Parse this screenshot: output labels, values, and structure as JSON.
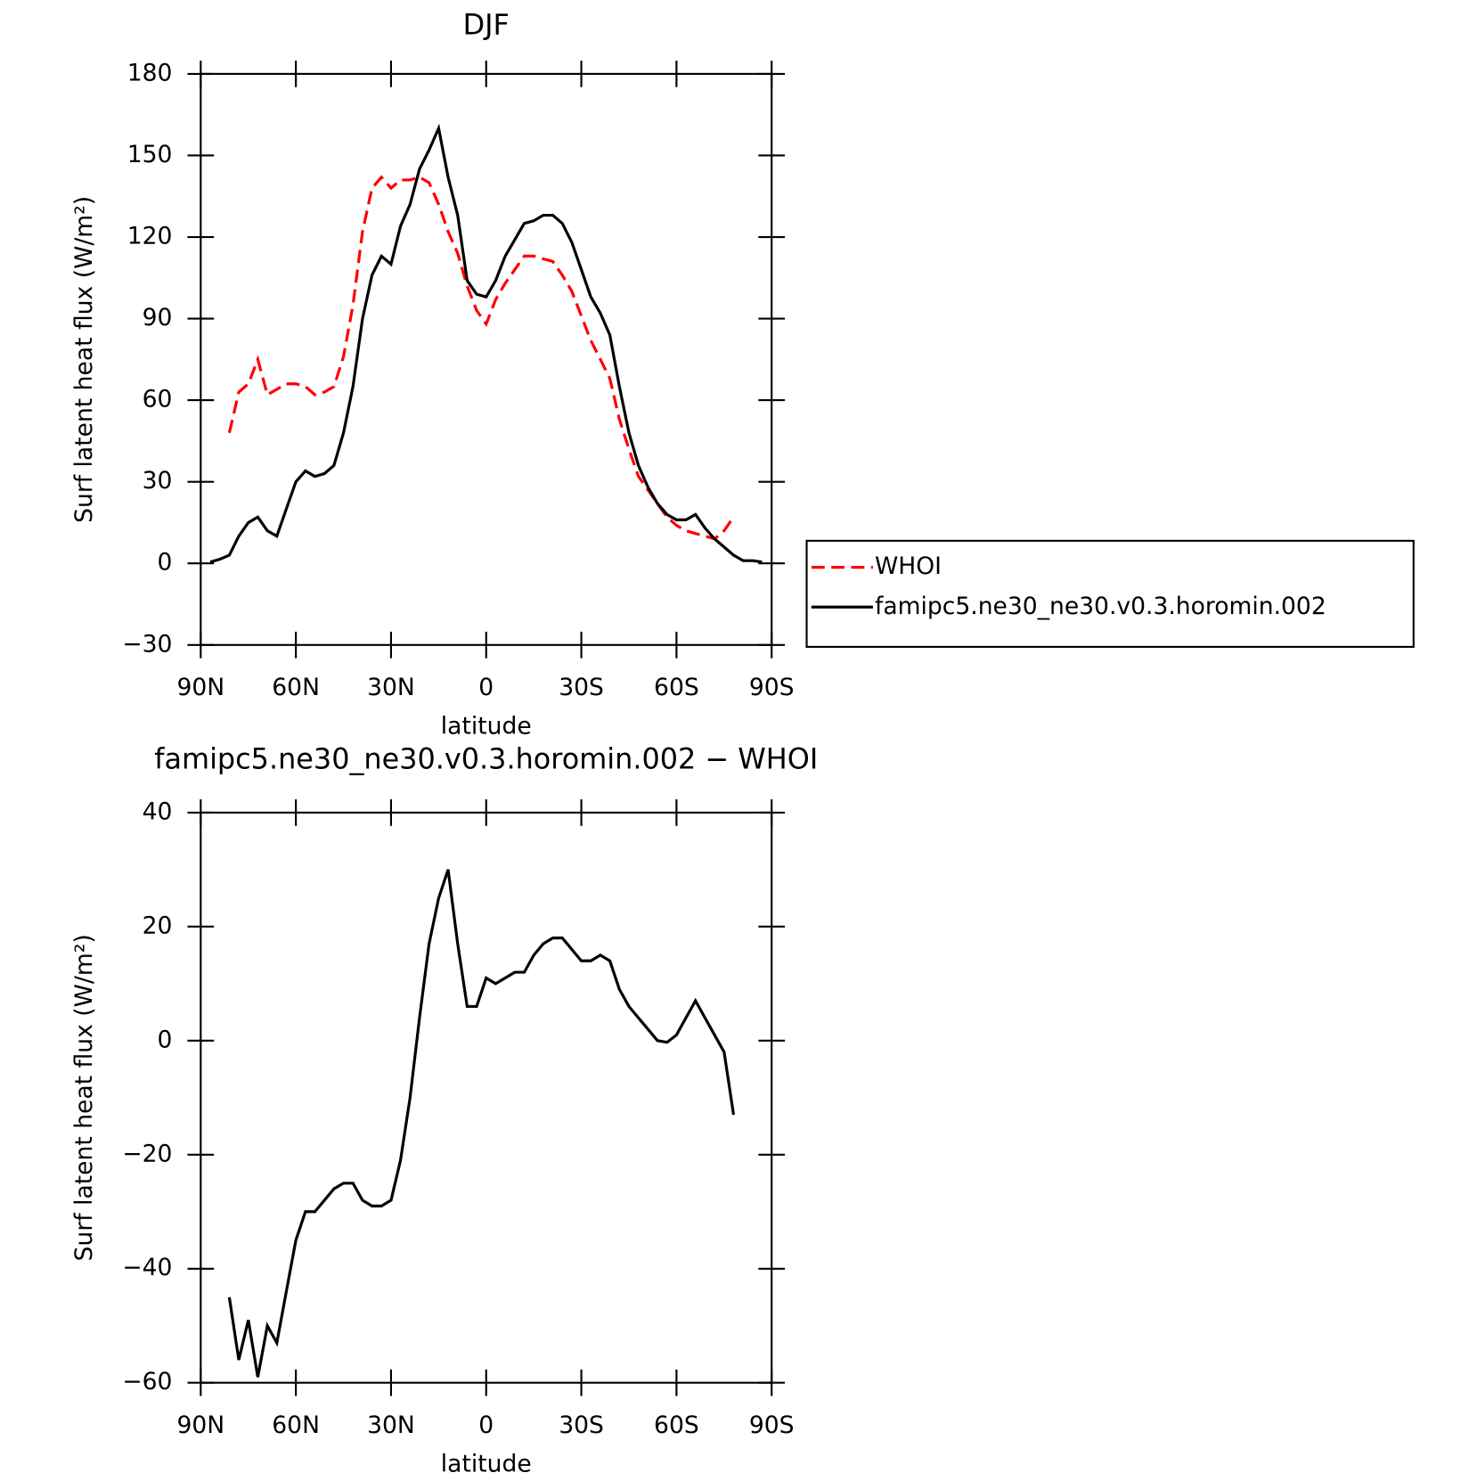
{
  "chart_data": [
    {
      "type": "line",
      "title": "DJF",
      "x_label": "latitude",
      "y_label": "Surf latent heat flux (W/m²)",
      "x": [
        87,
        84,
        81,
        78,
        75,
        72,
        69,
        66,
        63,
        60,
        57,
        54,
        51,
        48,
        45,
        42,
        39,
        36,
        33,
        30,
        27,
        24,
        21,
        18,
        15,
        12,
        9,
        6,
        3,
        0,
        -3,
        -6,
        -9,
        -12,
        -15,
        -18,
        -21,
        -24,
        -27,
        -30,
        -33,
        -36,
        -39,
        -42,
        -45,
        -48,
        -51,
        -54,
        -57,
        -60,
        -63,
        -66,
        -69,
        -72,
        -75,
        -78,
        -81,
        -84,
        -87
      ],
      "series": [
        {
          "name": "WHOI",
          "color": "#ff0000",
          "dashed": true,
          "values": [
            null,
            null,
            48,
            63,
            66,
            75,
            62,
            64,
            66,
            66,
            65,
            62,
            63,
            65,
            76,
            95,
            122,
            138,
            142,
            138,
            141,
            141,
            142,
            140,
            132,
            122,
            114,
            102,
            93,
            88,
            97,
            103,
            108,
            113,
            113,
            112,
            111,
            106,
            100,
            91,
            82,
            75,
            68,
            53,
            42,
            32,
            27,
            22,
            17,
            14,
            12,
            11,
            10,
            9,
            12,
            17,
            null,
            null,
            null
          ]
        },
        {
          "name": "famipc5.ne30_ne30.v0.3.horomin.002",
          "color": "#000000",
          "dashed": false,
          "values": [
            0.5,
            1.5,
            3,
            10,
            15,
            17,
            12,
            10,
            20,
            30,
            34,
            32,
            33,
            36,
            48,
            65,
            90,
            106,
            113,
            110,
            124,
            132,
            145,
            152,
            160,
            142,
            128,
            104,
            99,
            98,
            104,
            113,
            119,
            125,
            126,
            128,
            128,
            125,
            118,
            108,
            98,
            92,
            84,
            65,
            48,
            36,
            28,
            22,
            18,
            16,
            16,
            18,
            13,
            9,
            6,
            3,
            1,
            1,
            0.5
          ]
        }
      ],
      "xlim": [
        90,
        -90
      ],
      "xticks": [
        {
          "value": 90,
          "label": "90N"
        },
        {
          "value": 60,
          "label": "60N"
        },
        {
          "value": 30,
          "label": "30N"
        },
        0,
        {
          "value": -30,
          "label": "30S"
        },
        {
          "value": -60,
          "label": "60S"
        },
        {
          "value": -90,
          "label": "90S"
        }
      ],
      "ylim": [
        -30,
        180
      ],
      "yticks": [
        {
          "value": -30,
          "label": "−30"
        },
        0,
        30,
        60,
        90,
        120,
        150,
        180
      ],
      "legend": "right"
    },
    {
      "type": "line",
      "title": "famipc5.ne30_ne30.v0.3.horomin.002 − WHOI",
      "x_label": "latitude",
      "y_label": "Surf latent heat flux (W/m²)",
      "x": [
        87,
        84,
        81,
        78,
        75,
        72,
        69,
        66,
        63,
        60,
        57,
        54,
        51,
        48,
        45,
        42,
        39,
        36,
        33,
        30,
        27,
        24,
        21,
        18,
        15,
        12,
        9,
        6,
        3,
        0,
        -3,
        -6,
        -9,
        -12,
        -15,
        -18,
        -21,
        -24,
        -27,
        -30,
        -33,
        -36,
        -39,
        -42,
        -45,
        -48,
        -51,
        -54,
        -57,
        -60,
        -63,
        -66,
        -69,
        -72,
        -75,
        -78,
        -81,
        -84,
        -87
      ],
      "series": [
        {
          "color": "#000000",
          "dashed": false,
          "values": [
            null,
            null,
            -45,
            -56,
            -49,
            -59,
            -50,
            -53,
            -44,
            -35,
            -30,
            -30,
            -28,
            -26,
            -25,
            -25,
            -28,
            -29,
            -29,
            -28,
            -21,
            -10,
            4,
            17,
            25,
            30,
            17,
            6,
            6,
            11,
            10,
            11,
            12,
            12,
            15,
            17,
            18,
            18,
            16,
            14,
            14,
            15,
            14,
            9,
            6,
            4,
            2,
            0,
            -0.3,
            1,
            4,
            7,
            4,
            1,
            -2,
            -13,
            null,
            null,
            null
          ]
        }
      ],
      "xlim": [
        90,
        -90
      ],
      "xticks": [
        {
          "value": 90,
          "label": "90N"
        },
        {
          "value": 60,
          "label": "60N"
        },
        {
          "value": 30,
          "label": "30N"
        },
        0,
        {
          "value": -30,
          "label": "30S"
        },
        {
          "value": -60,
          "label": "60S"
        },
        {
          "value": -90,
          "label": "90S"
        }
      ],
      "ylim": [
        -60,
        40
      ],
      "yticks": [
        {
          "value": -60,
          "label": "−60"
        },
        {
          "value": -40,
          "label": "−40"
        },
        {
          "value": -20,
          "label": "−20"
        },
        0,
        20,
        40
      ]
    }
  ]
}
